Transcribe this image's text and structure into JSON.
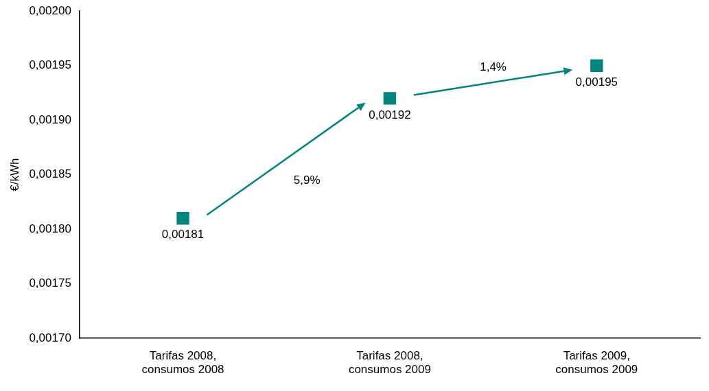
{
  "chart_data": {
    "type": "scatter",
    "ylabel": "€/kWh",
    "categories": [
      "Tarifas 2008, consumos 2008",
      "Tarifas 2008, consumos 2009",
      "Tarifas 2009, consumos 2009"
    ],
    "values": [
      0.00181,
      0.00192,
      0.00195
    ],
    "color": "#00847f",
    "marker": "square",
    "data_labels": true,
    "value_labels": [
      "0,00181",
      "0,00192",
      "0,00195"
    ],
    "annotations": [
      "5,9%",
      "1,4%"
    ],
    "ylim": [
      0.0017,
      0.002
    ],
    "yticks": [
      {
        "value": 0.0017,
        "label": "0,00170"
      },
      {
        "value": 0.00175,
        "label": "0,00175"
      },
      {
        "value": 0.0018,
        "label": "0,00180"
      },
      {
        "value": 0.00185,
        "label": "0,00185"
      },
      {
        "value": 0.0019,
        "label": "0,00190"
      },
      {
        "value": 0.00195,
        "label": "0,00195"
      },
      {
        "value": 0.002,
        "label": "0,00200"
      }
    ],
    "grid": false,
    "legend": false
  }
}
